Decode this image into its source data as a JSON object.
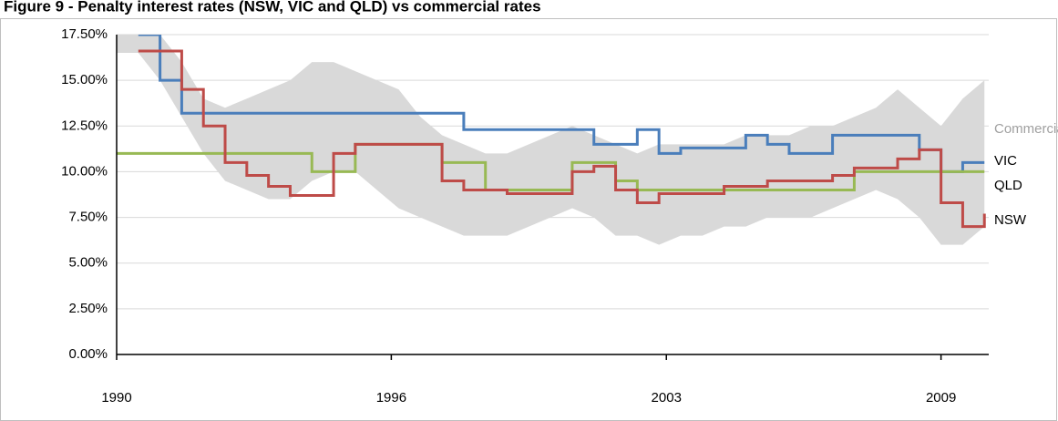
{
  "chart_data": {
    "type": "line",
    "step": true,
    "title": "Figure 9 - Penalty interest rates (NSW, VIC and QLD) vs commercial rates",
    "x": [
      1990,
      1990.5,
      1991,
      1991.5,
      1992,
      1992.5,
      1993,
      1993.5,
      1994,
      1994.5,
      1995,
      1995.5,
      1996,
      1996.5,
      1997,
      1997.5,
      1998,
      1998.5,
      1999,
      1999.5,
      2000,
      2000.5,
      2001,
      2001.5,
      2002,
      2002.5,
      2003,
      2003.5,
      2004,
      2004.5,
      2005,
      2005.5,
      2006,
      2006.5,
      2007,
      2007.5,
      2008,
      2008.5,
      2009,
      2009.5,
      2010
    ],
    "series": [
      {
        "name": "Commercial",
        "color": "#d9d9d9",
        "low": [
          16.5,
          16.5,
          15.0,
          13.0,
          11.0,
          9.5,
          9.0,
          8.5,
          8.5,
          9.5,
          10.0,
          10.0,
          9.0,
          8.0,
          7.5,
          7.0,
          6.5,
          6.5,
          6.5,
          7.0,
          7.5,
          8.0,
          7.5,
          6.5,
          6.5,
          6.0,
          6.5,
          6.5,
          7.0,
          7.0,
          7.5,
          7.5,
          7.5,
          8.0,
          8.5,
          9.0,
          8.5,
          7.5,
          6.0,
          6.0,
          7.0
        ],
        "high": [
          17.5,
          17.5,
          17.5,
          16.0,
          14.0,
          13.5,
          14.0,
          14.5,
          15.0,
          16.0,
          16.0,
          15.5,
          15.0,
          14.5,
          13.0,
          12.0,
          11.5,
          11.0,
          11.0,
          11.5,
          12.0,
          12.5,
          12.0,
          11.5,
          11.0,
          11.5,
          11.5,
          11.5,
          11.5,
          12.0,
          12.0,
          12.0,
          12.5,
          12.5,
          13.0,
          13.5,
          14.5,
          13.5,
          12.5,
          14.0,
          15.0
        ]
      },
      {
        "name": "VIC",
        "color": "#4a7ebb",
        "values": [
          null,
          17.5,
          15.0,
          13.2,
          13.2,
          13.2,
          13.2,
          13.2,
          13.2,
          13.2,
          13.2,
          13.2,
          13.2,
          13.2,
          13.2,
          13.2,
          12.3,
          12.3,
          12.3,
          12.3,
          12.3,
          12.3,
          11.5,
          11.5,
          12.3,
          11.0,
          11.3,
          11.3,
          11.3,
          12.0,
          11.5,
          11.0,
          11.0,
          12.0,
          12.0,
          12.0,
          12.0,
          11.2,
          10.0,
          10.5,
          10.5
        ]
      },
      {
        "name": "QLD",
        "color": "#98b954",
        "values": [
          11.0,
          11.0,
          11.0,
          11.0,
          11.0,
          11.0,
          11.0,
          11.0,
          11.0,
          10.0,
          10.0,
          11.5,
          11.5,
          11.5,
          11.5,
          10.5,
          10.5,
          9.0,
          9.0,
          9.0,
          9.0,
          10.5,
          10.5,
          9.5,
          9.0,
          9.0,
          9.0,
          9.0,
          9.0,
          9.0,
          9.0,
          9.0,
          9.0,
          9.0,
          10.0,
          10.0,
          10.0,
          10.0,
          10.0,
          10.0,
          10.0
        ]
      },
      {
        "name": "NSW",
        "color": "#be4b48",
        "values": [
          null,
          16.6,
          16.6,
          14.5,
          12.5,
          10.5,
          9.8,
          9.2,
          8.7,
          8.7,
          11.0,
          11.5,
          11.5,
          11.5,
          11.5,
          9.5,
          9.0,
          9.0,
          8.8,
          8.8,
          8.8,
          10.0,
          10.3,
          9.0,
          8.3,
          8.8,
          8.8,
          8.8,
          9.2,
          9.2,
          9.5,
          9.5,
          9.5,
          9.8,
          10.2,
          10.2,
          10.7,
          11.2,
          8.3,
          7.0,
          7.7
        ]
      }
    ],
    "xlim": [
      1990,
      2010.1
    ],
    "xticks": [
      {
        "value": 1990,
        "label": "1990"
      },
      {
        "value": 1996.33,
        "label": "1996"
      },
      {
        "value": 2002.67,
        "label": "2003"
      },
      {
        "value": 2009,
        "label": "2009"
      }
    ],
    "ylim": [
      0,
      17.5
    ],
    "yticks": [
      {
        "value": 0,
        "label": "0.00%"
      },
      {
        "value": 2.5,
        "label": "2.50%"
      },
      {
        "value": 5,
        "label": "5.00%"
      },
      {
        "value": 7.5,
        "label": "7.50%"
      },
      {
        "value": 10,
        "label": "10.00%"
      },
      {
        "value": 12.5,
        "label": "12.50%"
      },
      {
        "value": 15,
        "label": "15.00%"
      },
      {
        "value": 17.5,
        "label": "17.50%"
      }
    ],
    "grid": true
  }
}
